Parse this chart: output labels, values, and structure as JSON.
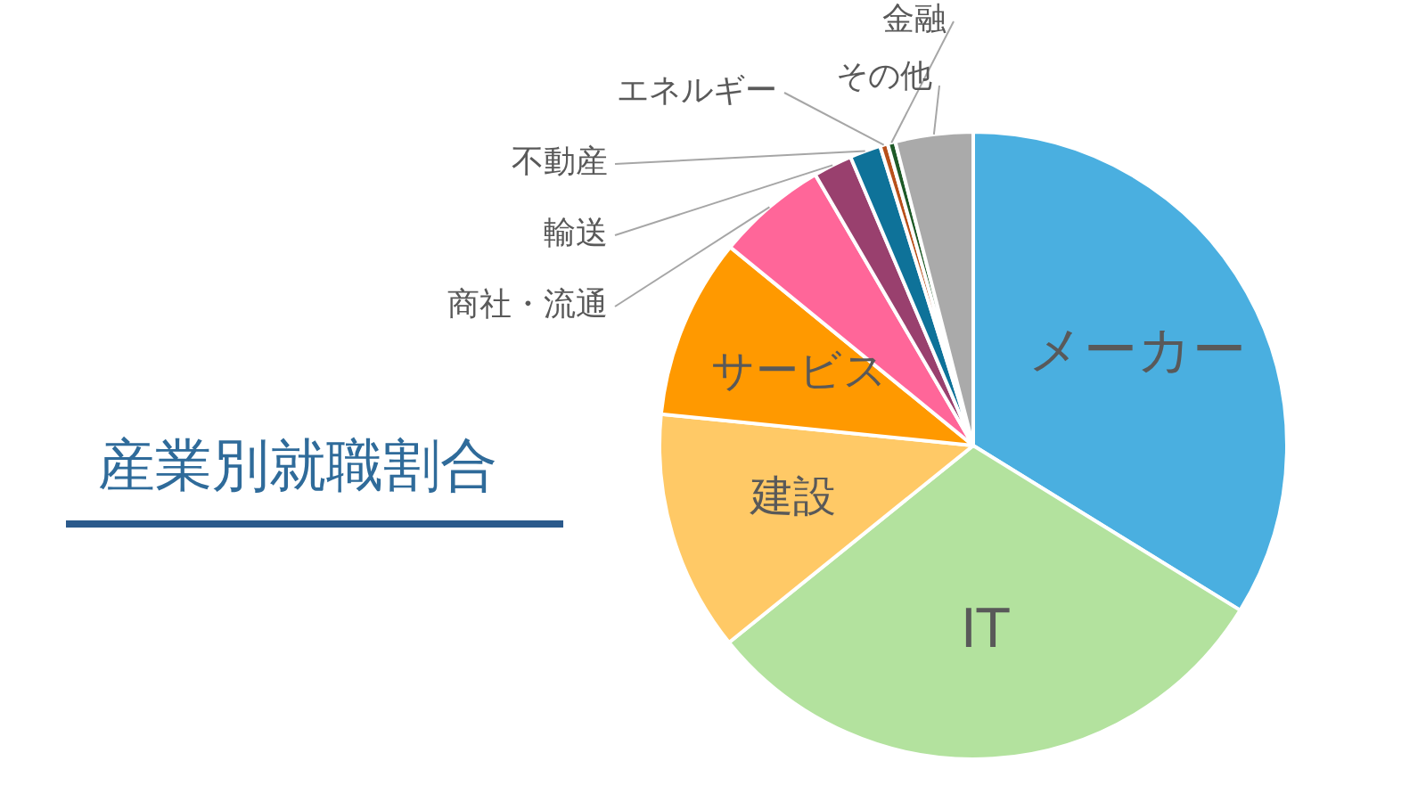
{
  "chart_data": {
    "type": "pie",
    "title": "産業別就職割合",
    "categories": [
      "メーカー",
      "IT",
      "建設",
      "サービス",
      "商社・流通",
      "輸送",
      "不動産",
      "エネルギー",
      "金融",
      "その他"
    ],
    "values": [
      33.8,
      30.4,
      12.4,
      9.3,
      5.7,
      2.0,
      1.6,
      0.4,
      0.4,
      4.0
    ],
    "colors": [
      "#4aafe0",
      "#b3e29e",
      "#ffc966",
      "#ff9900",
      "#ff6699",
      "#99406e",
      "#0e7299",
      "#b8501a",
      "#1e5a28",
      "#aaaaaa"
    ]
  }
}
